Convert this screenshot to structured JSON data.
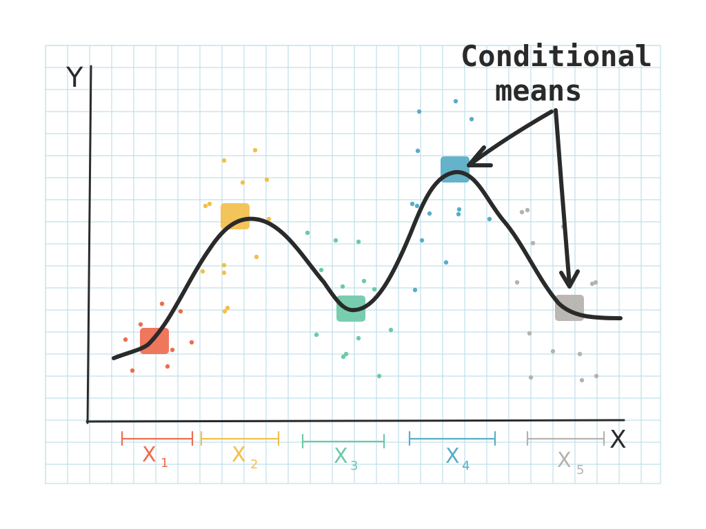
{
  "diagram": {
    "title_lines": [
      "Conditional",
      "means"
    ],
    "y_axis_label": "Y",
    "x_axis_label": "X",
    "bins": [
      {
        "label": "X",
        "subscript": "1",
        "color": "#ee6b4f"
      },
      {
        "label": "X",
        "subscript": "2",
        "color": "#f2bf4c"
      },
      {
        "label": "X",
        "subscript": "3",
        "color": "#6cc9a8"
      },
      {
        "label": "X",
        "subscript": "4",
        "color": "#58adc7"
      },
      {
        "label": "X",
        "subscript": "5",
        "color": "#b5b2ae"
      }
    ],
    "colors": {
      "grid": "#bfe0ea",
      "ink": "#2a2a2a"
    }
  }
}
